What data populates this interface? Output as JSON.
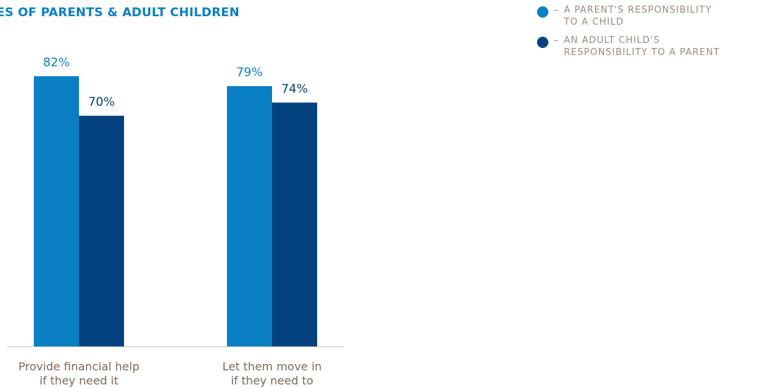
{
  "title": "ES OF PARENTS & ADULT CHILDREN",
  "legend": {
    "items": [
      {
        "dash": "–",
        "line1": "A PARENT'S RESPONSIBILITY",
        "line2": "TO A CHILD",
        "color": "#0b7fc3"
      },
      {
        "dash": "–",
        "line1": "AN ADULT CHILD'S",
        "line2": "RESPONSIBILITY TO A PARENT",
        "color": "#04427f"
      }
    ]
  },
  "chart_data": {
    "type": "bar",
    "categories": [
      [
        "Provide financial help",
        "if they need it"
      ],
      [
        "Let them move in",
        "if they need to"
      ]
    ],
    "series": [
      {
        "name": "A parent's responsibility to a child",
        "values": [
          82,
          79
        ],
        "labels": [
          "82%",
          "79%"
        ],
        "color": "#0b7fc3"
      },
      {
        "name": "An adult child's responsibility to a parent",
        "values": [
          70,
          74
        ],
        "labels": [
          "70%",
          "74%"
        ],
        "color": "#04427f"
      }
    ],
    "ylim": [
      0,
      100
    ],
    "grid": false,
    "legend_position": "top-right"
  }
}
